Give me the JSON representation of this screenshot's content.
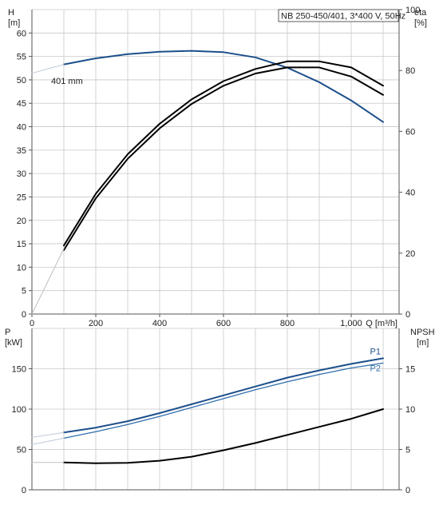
{
  "chart_data": [
    {
      "type": "line",
      "title": "NB 250-450/401, 3*400 V, 50Hz",
      "xlabel": "Q [m³/h]",
      "xlim": [
        0,
        1150
      ],
      "x_ticks": [
        "0",
        "200",
        "400",
        "600",
        "800",
        "1,000"
      ],
      "ylabel_left": [
        "H",
        "[m]"
      ],
      "ylim_left": [
        0,
        65
      ],
      "y_ticks_left": [
        "0",
        "5",
        "10",
        "15",
        "20",
        "25",
        "30",
        "35",
        "40",
        "45",
        "50",
        "55",
        "60"
      ],
      "ylabel_right": [
        "eta",
        "[%]"
      ],
      "ylim_right": [
        0,
        100
      ],
      "y_ticks_right": [
        "0",
        "20",
        "40",
        "60",
        "80",
        "100"
      ],
      "grid": true,
      "annotation": "401 mm",
      "series": [
        {
          "axis": "left",
          "color": "#1c4f8c",
          "x": [
            100,
            200,
            300,
            400,
            500,
            600,
            700,
            800,
            900,
            1000,
            1100
          ],
          "y": [
            53.3,
            54.6,
            55.5,
            56.0,
            56.2,
            55.9,
            54.8,
            52.6,
            49.5,
            45.6,
            41.0
          ]
        },
        {
          "axis": "left",
          "color": "#bfc8d8",
          "x": [
            0,
            100
          ],
          "y": [
            51.4,
            53.3
          ]
        },
        {
          "axis": "right",
          "color": "#000000",
          "x": [
            100,
            200,
            300,
            400,
            500,
            600,
            700,
            800,
            900,
            1000,
            1100
          ],
          "y": [
            21,
            38,
            51,
            61,
            69,
            75,
            79,
            81,
            81,
            78,
            72
          ]
        },
        {
          "axis": "right",
          "color": "#000000",
          "x": [
            100,
            200,
            300,
            400,
            500,
            600,
            700,
            800,
            900,
            1000,
            1100
          ],
          "y": [
            22.5,
            39.5,
            52.5,
            62.5,
            70.5,
            76.5,
            80.5,
            83,
            83,
            81,
            75
          ]
        },
        {
          "axis": "right",
          "color": "#bfbfbf",
          "x": [
            0,
            100
          ],
          "y": [
            0,
            21.5
          ]
        }
      ]
    },
    {
      "type": "line",
      "ylabel_left": [
        "P",
        "[kW]"
      ],
      "ylim_left": [
        0,
        200
      ],
      "y_ticks_left": [
        "0",
        "50",
        "100",
        "150"
      ],
      "ylabel_right": [
        "NPSH",
        "[m]"
      ],
      "ylim_right": [
        0,
        20
      ],
      "y_ticks_right": [
        "0",
        "5",
        "10",
        "15"
      ],
      "xlim": [
        0,
        1150
      ],
      "grid": true,
      "series": [
        {
          "name": "P1",
          "axis": "left",
          "color": "#1c4f8c",
          "x": [
            100,
            200,
            300,
            400,
            500,
            600,
            700,
            800,
            900,
            1000,
            1100
          ],
          "y": [
            71,
            77,
            85,
            95,
            106,
            117,
            128,
            139,
            148,
            156,
            163
          ]
        },
        {
          "name": "P2",
          "axis": "left",
          "color": "#2f6fad",
          "x": [
            100,
            200,
            300,
            400,
            500,
            600,
            700,
            800,
            900,
            1000,
            1100
          ],
          "y": [
            64,
            72,
            81,
            91,
            102,
            113,
            124,
            134,
            143,
            151,
            157
          ]
        },
        {
          "axis": "left",
          "color": "#bfc8d8",
          "x": [
            0,
            100
          ],
          "y": [
            65,
            71
          ]
        },
        {
          "axis": "left",
          "color": "#bfc8d8",
          "x": [
            0,
            100
          ],
          "y": [
            56,
            64
          ]
        },
        {
          "axis": "right",
          "color": "#000000",
          "x": [
            100,
            200,
            300,
            400,
            500,
            600,
            700,
            800,
            900,
            1000,
            1100
          ],
          "y": [
            3.4,
            3.3,
            3.35,
            3.6,
            4.1,
            4.9,
            5.8,
            6.8,
            7.8,
            8.8,
            10.0
          ]
        },
        {
          "axis": "right",
          "color": "#bfbfbf",
          "x": [
            0,
            100
          ],
          "y": [
            3.4,
            3.4
          ]
        }
      ]
    }
  ]
}
